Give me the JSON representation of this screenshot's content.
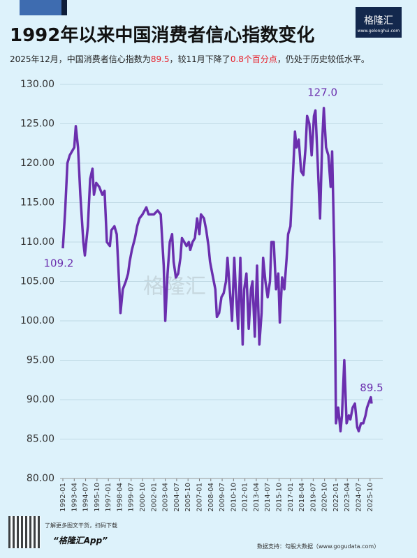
{
  "brand": {
    "name": "格隆汇",
    "url": "www.gelonghui.com"
  },
  "chart_data": {
    "type": "line",
    "title": "1992年以来中国消费者信心指数变化",
    "subtitle": [
      {
        "text": "2025年12月，中国消费者信心指数为"
      },
      {
        "text": "89.5",
        "highlight": true
      },
      {
        "text": "，较11月下降了"
      },
      {
        "text": "0.8个百分点",
        "highlight": true
      },
      {
        "text": "，仍处于历史较低水平。"
      }
    ],
    "highlight_color": "#e8202a",
    "x": [
      "1992-01",
      "1992-04",
      "1992-07",
      "1992-10",
      "1993-04",
      "1993-06",
      "1993-09",
      "1993-12",
      "1994-04",
      "1994-06",
      "1994-10",
      "1995-01",
      "1995-04",
      "1995-06",
      "1995-09",
      "1996-01",
      "1996-05",
      "1996-08",
      "1996-11",
      "1997-03",
      "1997-05",
      "1997-09",
      "1997-12",
      "1998-03",
      "1998-05",
      "1998-08",
      "1998-12",
      "1999-03",
      "1999-05",
      "1999-08",
      "1999-12",
      "2000-03",
      "2000-06",
      "2000-10",
      "2001-03",
      "2001-06",
      "2002-01",
      "2002-06",
      "2002-10",
      "2003-02",
      "2003-04",
      "2003-07",
      "2003-10",
      "2004-01",
      "2004-03",
      "2004-06",
      "2004-09",
      "2004-12",
      "2005-02",
      "2005-05",
      "2005-08",
      "2005-11",
      "2006-01",
      "2006-04",
      "2006-07",
      "2006-10",
      "2007-01",
      "2007-03",
      "2007-07",
      "2007-10",
      "2008-01",
      "2008-03",
      "2008-06",
      "2008-10",
      "2008-12",
      "2009-03",
      "2009-06",
      "2009-09",
      "2009-12",
      "2010-02",
      "2010-05",
      "2010-08",
      "2010-11",
      "2011-01",
      "2011-04",
      "2011-07",
      "2011-10",
      "2011-12",
      "2012-03",
      "2012-06",
      "2012-09",
      "2012-11",
      "2013-02",
      "2013-05",
      "2013-08",
      "2013-11",
      "2014-01",
      "2014-04",
      "2014-07",
      "2014-10",
      "2014-12",
      "2015-03",
      "2015-06",
      "2015-09",
      "2015-11",
      "2016-02",
      "2016-05",
      "2016-08",
      "2016-10",
      "2017-01",
      "2017-04",
      "2017-07",
      "2017-09",
      "2017-12",
      "2018-03",
      "2018-06",
      "2018-09",
      "2018-11",
      "2019-02",
      "2019-05",
      "2019-08",
      "2019-10",
      "2020-01",
      "2020-04",
      "2020-07",
      "2020-09",
      "2020-12",
      "2021-03",
      "2021-06",
      "2021-08",
      "2021-11",
      "2022-01",
      "2022-04",
      "2022-07",
      "2022-09",
      "2022-12",
      "2023-03",
      "2023-06",
      "2023-08",
      "2023-11",
      "2024-02",
      "2024-05",
      "2024-07",
      "2024-10",
      "2025-01",
      "2025-04",
      "2025-06",
      "2025-09",
      "2025-11",
      "2025-12"
    ],
    "series": [
      {
        "name": "消费者信心指数",
        "color": "#6b2fae",
        "values": [
          109.2,
          114,
          120,
          121,
          122,
          124.7,
          122,
          116,
          110,
          108.3,
          112,
          118,
          119.3,
          116,
          117.5,
          117,
          116,
          116.5,
          110,
          109.5,
          111.5,
          112,
          111,
          105,
          101,
          104,
          105,
          106,
          107.5,
          109,
          110.5,
          112,
          113,
          113.5,
          114.4,
          113.5,
          113.5,
          114,
          113.5,
          107,
          100,
          106,
          110,
          111,
          107.5,
          105.5,
          106,
          108,
          110.5,
          110,
          109.5,
          110,
          109,
          110,
          110.5,
          113,
          111,
          113.5,
          113,
          111.5,
          109.5,
          107.5,
          106,
          104,
          100.5,
          101,
          103,
          103.5,
          105,
          108,
          104,
          100,
          108,
          104,
          99,
          108,
          97,
          104,
          106,
          99,
          104,
          105,
          98,
          107,
          97,
          101,
          108,
          105,
          103,
          105,
          110,
          110,
          104,
          106,
          99.8,
          105.5,
          104,
          108,
          111,
          112,
          118,
          124,
          122,
          123,
          119,
          118.5,
          122,
          126,
          125,
          121,
          126,
          126.7,
          120,
          113,
          123,
          127.0,
          122,
          121,
          117,
          121.5,
          108,
          87,
          89,
          86,
          88,
          95,
          87,
          88,
          87.5,
          89,
          89.5,
          86.5,
          86,
          87,
          87,
          88,
          89,
          89.8,
          90.3,
          89.5
        ]
      }
    ],
    "annotations": [
      {
        "x": "1992-01",
        "text": "109.2"
      },
      {
        "x": "2020-09",
        "text": "127.0"
      },
      {
        "x": "2025-12",
        "text": "89.5"
      }
    ],
    "xlim": [
      "1992-01",
      "2025-12"
    ],
    "xticks": [
      "1992-01",
      "1993-04",
      "1994-07",
      "1995-10",
      "1997-01",
      "1998-04",
      "1999-07",
      "2000-10",
      "2002-01",
      "2003-04",
      "2004-07",
      "2005-10",
      "2007-01",
      "2008-04",
      "2009-07",
      "2010-10",
      "2012-01",
      "2013-04",
      "2014-07",
      "2015-10",
      "2017-01",
      "2018-04",
      "2019-07",
      "2020-10",
      "2022-01",
      "2023-04",
      "2024-07",
      "2025-10"
    ],
    "ylim": [
      80,
      130
    ],
    "yticks": [
      {
        "value": 80,
        "label": "80.00"
      },
      {
        "value": 85,
        "label": "85.00"
      },
      {
        "value": 90,
        "label": "90.00"
      },
      {
        "value": 95,
        "label": "95.00"
      },
      {
        "value": 100,
        "label": "100.00"
      },
      {
        "value": 105,
        "label": "105.00"
      },
      {
        "value": 110,
        "label": "110.00"
      },
      {
        "value": 115,
        "label": "115.00"
      },
      {
        "value": 120,
        "label": "120.00"
      },
      {
        "value": 125,
        "label": "125.00"
      },
      {
        "value": 130,
        "label": "130.00"
      }
    ],
    "grid": true
  },
  "footer": {
    "tip": "了解更多图文干货，扫码下载",
    "app": "“格隆汇App”",
    "source": "数据支持：勾股大数据（www.gogudata.com）"
  }
}
